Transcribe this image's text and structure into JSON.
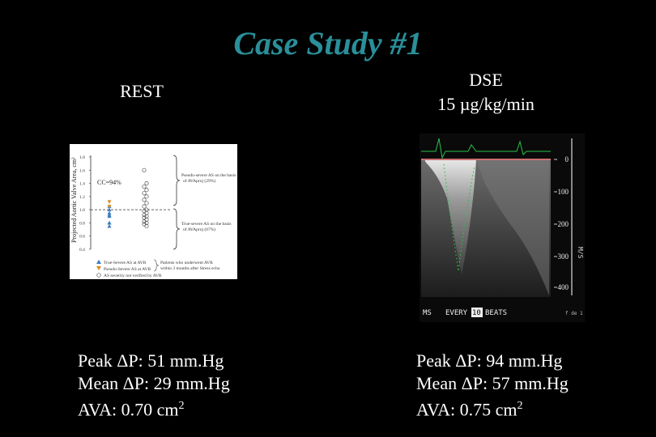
{
  "slide": {
    "title": "Case Study #1",
    "rest": {
      "heading": "REST",
      "peak": "Peak ΔP: 51 mm.Hg",
      "mean": "Mean ΔP: 29 mm.Hg",
      "ava_text": "AVA: 0.70 cm",
      "ava_sup": "2"
    },
    "dse": {
      "heading_line1": "DSE",
      "heading_line2": "15 µg/kg/min",
      "peak": "Peak ΔP: 94 mm.Hg",
      "mean": "Mean ΔP: 57 mm.Hg",
      "ava_text": "AVA: 0.75 cm",
      "ava_sup": "2"
    }
  },
  "chart_data": {
    "type": "scatter",
    "ylabel": "Projected Aortic Valve Area, cm²",
    "ylim": [
      0.4,
      1.8
    ],
    "yticks": [
      "1.8",
      "1.6",
      "1.4",
      "1.2",
      "1.0",
      "0.8",
      "0.6",
      "0.4"
    ],
    "cc_label": "CC=94%",
    "cutoff": 1.0,
    "annotations": {
      "upper": [
        "Pseudo-severe AS on the basis",
        "of AVAproj (29%)"
      ],
      "lower": [
        "True-severe AS on the basis",
        "of AVAproj (67%)"
      ]
    },
    "legend": [
      "True-Severe AS at AVR",
      "Pseudo-Severe AS at AVR",
      "AS severity not verified by AVR"
    ],
    "legend_note": [
      "Patients who underwent AVR",
      "within 3 months after Stress echo"
    ],
    "points_a": [
      0.75,
      0.8,
      0.8,
      0.9,
      0.92,
      0.95,
      1.0,
      1.05
    ],
    "points_b": [
      1.05,
      1.12
    ],
    "points_c": [
      1.6,
      1.4,
      1.35,
      1.3,
      1.25,
      1.2,
      1.15,
      1.1,
      1.05,
      1.0,
      0.98,
      0.95,
      0.92,
      0.9,
      0.88,
      0.85,
      0.82,
      0.8,
      0.78,
      0.75
    ]
  },
  "echo": {
    "scale_labels": [
      "0",
      "100",
      "200",
      "300",
      "400"
    ],
    "bottom_left": "MS",
    "every_label": "EVERY",
    "beats_count": "10",
    "beats_label": "BEATS",
    "side_text": "M/S",
    "corner_text": "f de 1"
  }
}
